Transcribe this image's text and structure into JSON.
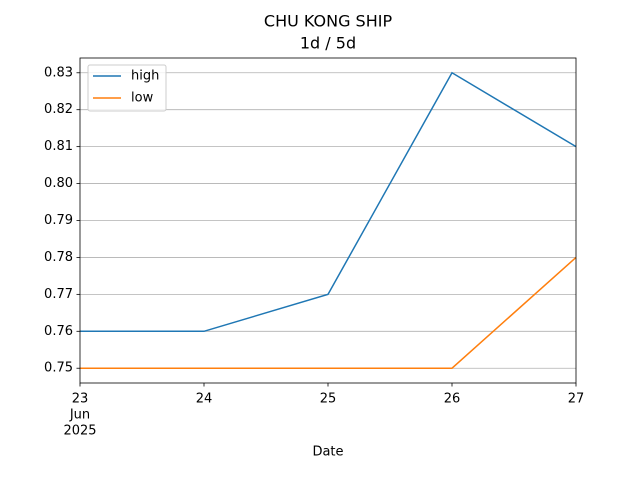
{
  "chart_data": {
    "type": "line",
    "title": "CHU KONG SHIP",
    "subtitle": "1d / 5d",
    "xlabel": "Date",
    "x": [
      "2025-06-23",
      "2025-06-24",
      "2025-06-25",
      "2025-06-26",
      "2025-06-27"
    ],
    "series": [
      {
        "name": "high",
        "color": "#1f77b4",
        "values": [
          0.76,
          0.76,
          0.77,
          0.83,
          0.81
        ]
      },
      {
        "name": "low",
        "color": "#ff7f0e",
        "values": [
          0.75,
          0.75,
          0.75,
          0.75,
          0.78
        ]
      }
    ],
    "xlim": [
      "2025-06-23",
      "2025-06-27"
    ],
    "xticks": [
      {
        "value": "2025-06-23",
        "label": "23"
      },
      {
        "value": "2025-06-24",
        "label": "24"
      },
      {
        "value": "2025-06-25",
        "label": "25"
      },
      {
        "value": "2025-06-26",
        "label": "26"
      },
      {
        "value": "2025-06-27",
        "label": "27"
      }
    ],
    "xtick_month": "Jun",
    "xtick_year": "2025",
    "ylim": [
      0.746,
      0.834
    ],
    "yticks": [
      0.75,
      0.76,
      0.77,
      0.78,
      0.79,
      {
        "value": 0.8,
        "label": "0.80"
      },
      0.81,
      0.82,
      0.83
    ],
    "grid": "y",
    "legend": "upper left"
  }
}
